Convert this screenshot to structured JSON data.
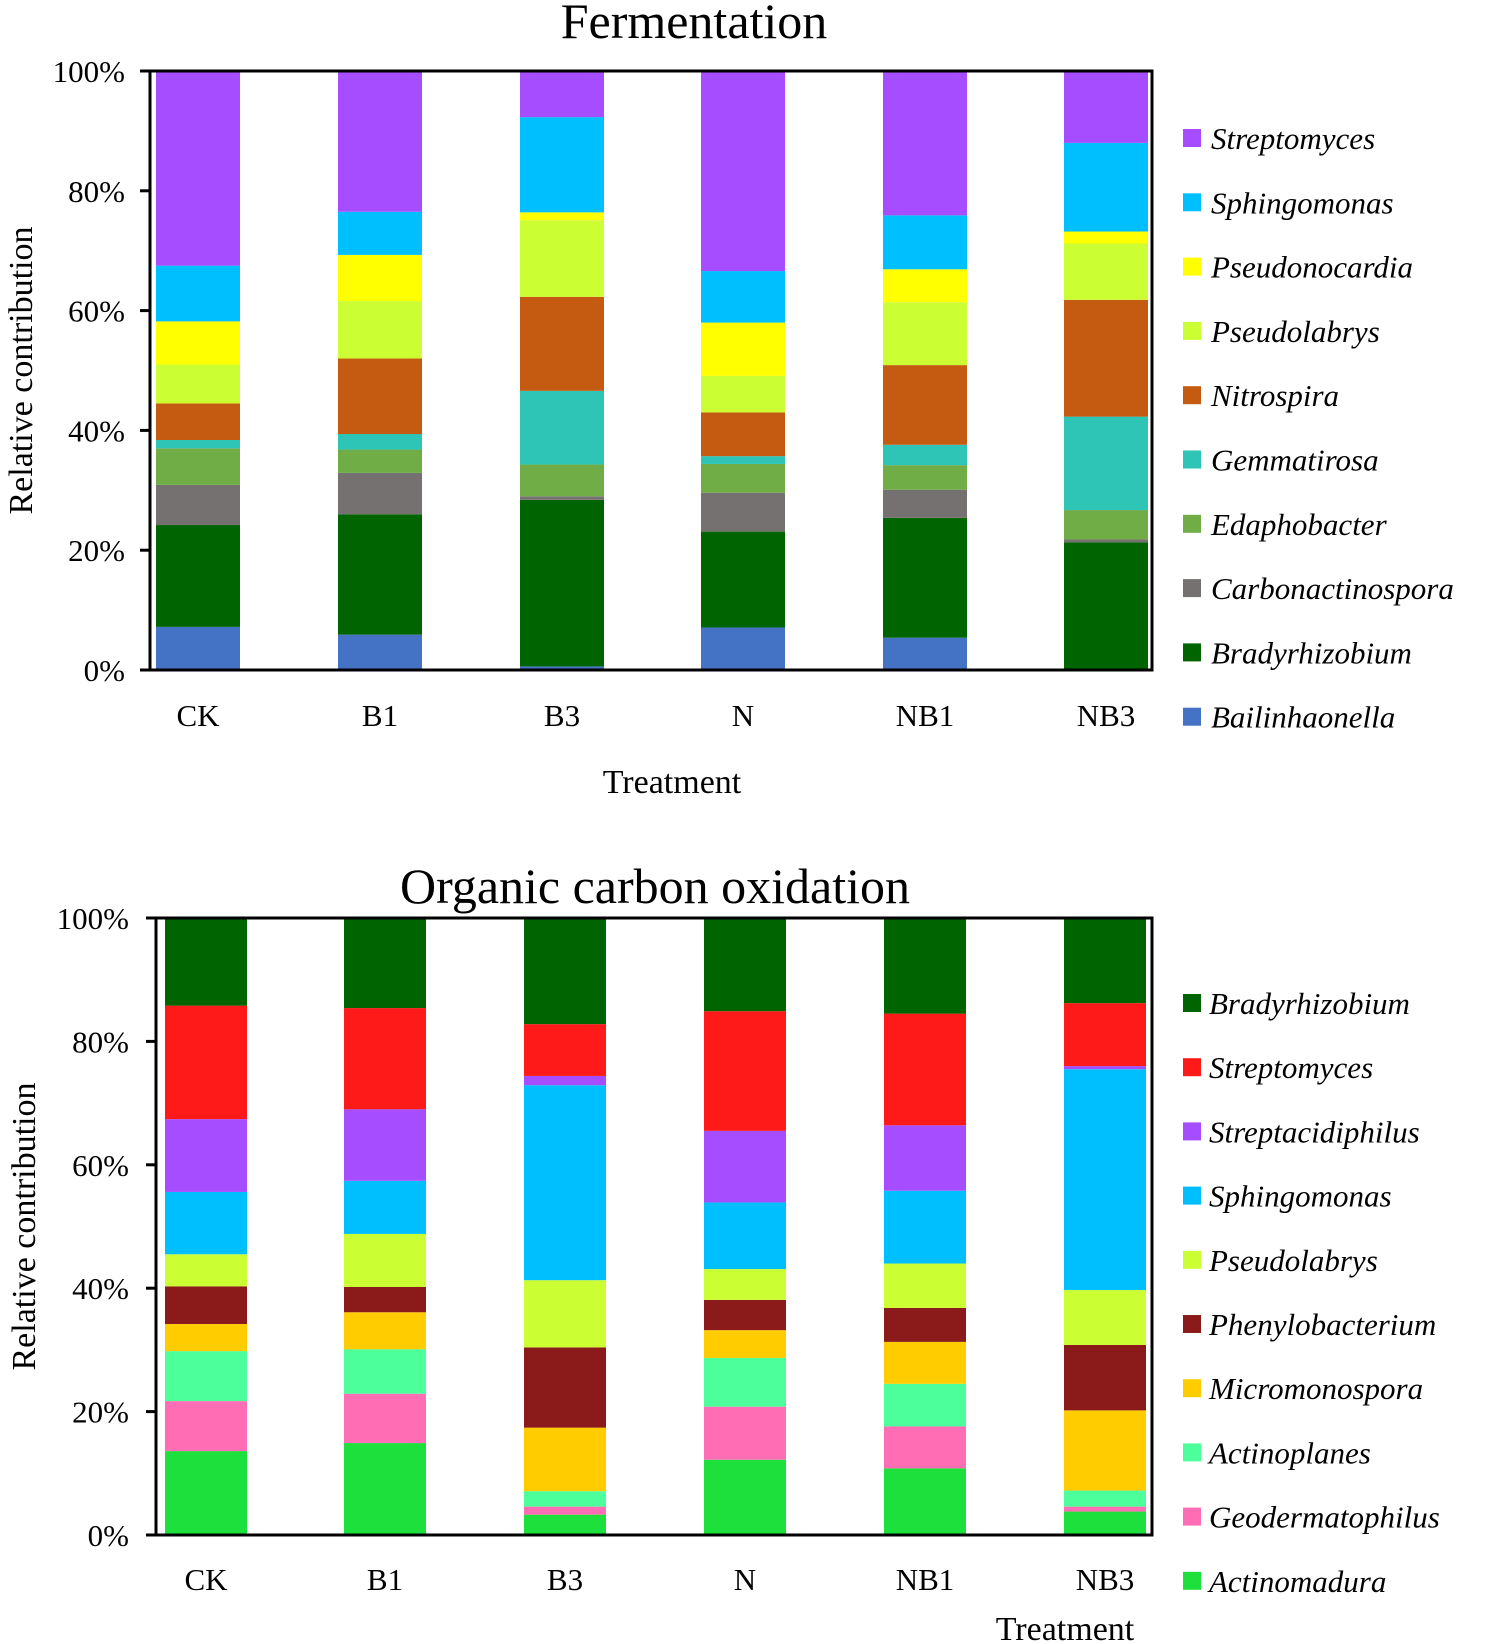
{
  "figure_title_top": "Fermentation",
  "figure_title_bottom": "Organic carbon oxidation",
  "chart_data": [
    {
      "type": "bar",
      "stacked": true,
      "title": "Fermentation",
      "xlabel": "Treatment",
      "ylabel": "Relative contribution",
      "ylim": [
        0,
        100
      ],
      "yticks": [
        "0%",
        "20%",
        "40%",
        "60%",
        "80%",
        "100%"
      ],
      "categories": [
        "CK",
        "B1",
        "B3",
        "N",
        "NB1",
        "NB3"
      ],
      "legend_position": "right",
      "series": [
        {
          "name": "Bailinhaonella",
          "color": "#4472C4",
          "values": [
            7.2,
            5.9,
            0.6,
            7.1,
            5.4,
            0.2
          ]
        },
        {
          "name": "Bradyrhizobium",
          "color": "#006400",
          "values": [
            17.0,
            20.1,
            27.8,
            16.0,
            20.0,
            21.1
          ]
        },
        {
          "name": "Carbonactinospora",
          "color": "#767171",
          "values": [
            6.7,
            6.9,
            0.6,
            6.5,
            4.7,
            0.5
          ]
        },
        {
          "name": "Edaphobacter",
          "color": "#70AD47",
          "values": [
            6.1,
            3.9,
            5.3,
            4.8,
            4.1,
            4.9
          ]
        },
        {
          "name": "Gemmatirosa",
          "color": "#2EC4B6",
          "values": [
            1.4,
            2.6,
            12.3,
            1.3,
            3.4,
            15.6
          ]
        },
        {
          "name": "Nitrospira",
          "color": "#C55A11",
          "values": [
            6.1,
            12.6,
            15.7,
            7.3,
            13.3,
            19.5
          ]
        },
        {
          "name": "Pseudolabrys",
          "color": "#CCFF33",
          "values": [
            6.5,
            9.6,
            12.8,
            6.1,
            10.5,
            9.4
          ]
        },
        {
          "name": "Pseudonocardia",
          "color": "#FFFF00",
          "values": [
            7.2,
            7.7,
            1.3,
            8.9,
            5.5,
            2.0
          ]
        },
        {
          "name": "Sphingomonas",
          "color": "#00BFFF",
          "values": [
            9.3,
            7.2,
            15.9,
            8.6,
            9.0,
            14.8
          ]
        },
        {
          "name": "Streptomyces",
          "color": "#A64DFF",
          "values": [
            32.5,
            23.5,
            7.7,
            33.4,
            24.1,
            12.0
          ]
        }
      ]
    },
    {
      "type": "bar",
      "stacked": true,
      "title": "Organic carbon oxidation",
      "xlabel": "Treatment",
      "ylabel": "Relative contribution",
      "ylim": [
        0,
        100
      ],
      "yticks": [
        "0%",
        "20%",
        "40%",
        "60%",
        "80%",
        "100%"
      ],
      "categories": [
        "CK",
        "B1",
        "B3",
        "N",
        "NB1",
        "NB3"
      ],
      "legend_position": "right",
      "series": [
        {
          "name": "Actinomadura",
          "color": "#1EE03C",
          "values": [
            13.6,
            14.9,
            3.3,
            12.2,
            10.8,
            3.8
          ]
        },
        {
          "name": "Geodermatophilus",
          "color": "#FF6EB4",
          "values": [
            8.1,
            8.0,
            1.3,
            8.6,
            6.8,
            0.8
          ]
        },
        {
          "name": "Actinoplanes",
          "color": "#4DFF9A",
          "values": [
            8.1,
            7.2,
            2.5,
            7.9,
            6.9,
            2.6
          ]
        },
        {
          "name": "Micromonospora",
          "color": "#FFCC00",
          "values": [
            4.4,
            6.0,
            10.3,
            4.5,
            6.8,
            13.0
          ]
        },
        {
          "name": "Phenylobacterium",
          "color": "#8B1A1A",
          "values": [
            6.1,
            4.1,
            13.0,
            4.9,
            5.5,
            10.6
          ]
        },
        {
          "name": "Pseudolabrys",
          "color": "#CCFF33",
          "values": [
            5.2,
            8.6,
            10.9,
            5.0,
            7.2,
            8.9
          ]
        },
        {
          "name": "Sphingomonas",
          "color": "#00BFFF",
          "values": [
            10.1,
            8.6,
            31.6,
            10.8,
            11.8,
            35.8
          ]
        },
        {
          "name": "Streptacidiphilus",
          "color": "#A64DFF",
          "values": [
            11.8,
            11.6,
            1.5,
            11.6,
            10.6,
            0.5
          ]
        },
        {
          "name": "Streptomyces",
          "color": "#FF1A1A",
          "values": [
            18.4,
            16.4,
            8.4,
            19.4,
            18.1,
            10.2
          ]
        },
        {
          "name": "Bradyrhizobium",
          "color": "#006400",
          "values": [
            14.2,
            14.6,
            17.2,
            15.1,
            15.5,
            13.8
          ]
        }
      ]
    }
  ]
}
